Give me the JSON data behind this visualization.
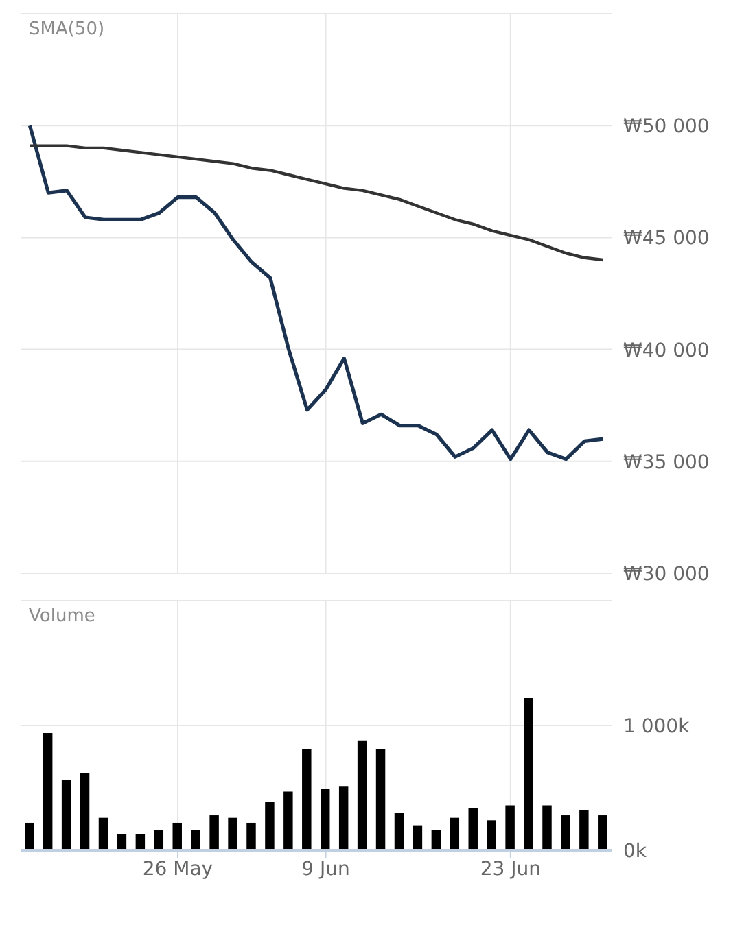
{
  "chart_data": [
    {
      "type": "line",
      "title": "SMA(50)",
      "categories": [
        null,
        null,
        null,
        null,
        null,
        null,
        null,
        null,
        null,
        null,
        null,
        null,
        null,
        null,
        null,
        null,
        null,
        null,
        null,
        null,
        null,
        null,
        null,
        null,
        null,
        null,
        null,
        null,
        null,
        null,
        null,
        null
      ],
      "series": [
        {
          "color": "#1b3350",
          "values": [
            50000,
            47000,
            47100,
            45900,
            45800,
            45800,
            45800,
            46100,
            46800,
            46800,
            46100,
            44900,
            43900,
            43200,
            40000,
            37300,
            38200,
            39600,
            36700,
            37100,
            36600,
            36600,
            36200,
            35200,
            35600,
            36400,
            35100,
            36400,
            35400,
            35100,
            35900,
            36000
          ]
        },
        {
          "color": "#333333",
          "values": [
            49100,
            49100,
            49100,
            49000,
            49000,
            48900,
            48800,
            48700,
            48600,
            48500,
            48400,
            48300,
            48100,
            48000,
            47800,
            47600,
            47400,
            47200,
            47100,
            46900,
            46700,
            46400,
            46100,
            45800,
            45600,
            45300,
            45100,
            44900,
            44600,
            44300,
            44100,
            44000
          ]
        }
      ],
      "ylim": [
        30000,
        55000
      ],
      "yticks": [
        {
          "value": 30000,
          "label": "₩30 000"
        },
        {
          "value": 35000,
          "label": "₩35 000"
        },
        {
          "value": 40000,
          "label": "₩40 000"
        },
        {
          "value": 45000,
          "label": "₩45 000"
        },
        {
          "value": 50000,
          "label": "₩50 000"
        },
        {
          "value": 55000,
          "label": null
        }
      ],
      "grid": true,
      "tick_labels": "y"
    },
    {
      "type": "bar",
      "title": "Volume",
      "categories": [
        null,
        null,
        null,
        null,
        null,
        null,
        null,
        null,
        "26 May",
        null,
        null,
        null,
        null,
        null,
        null,
        null,
        "9 Jun",
        null,
        null,
        null,
        null,
        null,
        null,
        null,
        null,
        null,
        "23 Jun",
        null,
        null,
        null,
        null,
        null
      ],
      "values": [
        220,
        940,
        560,
        620,
        260,
        130,
        130,
        160,
        220,
        160,
        280,
        260,
        220,
        390,
        470,
        810,
        490,
        510,
        880,
        810,
        300,
        200,
        160,
        260,
        340,
        240,
        360,
        1220,
        360,
        280,
        320,
        280
      ],
      "color": "#000000",
      "ylim": [
        0,
        2000
      ],
      "yticks": [
        {
          "value": 0,
          "label": "0k"
        },
        {
          "value": 1000,
          "label": "1 000k"
        },
        {
          "value": 2000,
          "label": null
        }
      ],
      "grid": true
    }
  ]
}
